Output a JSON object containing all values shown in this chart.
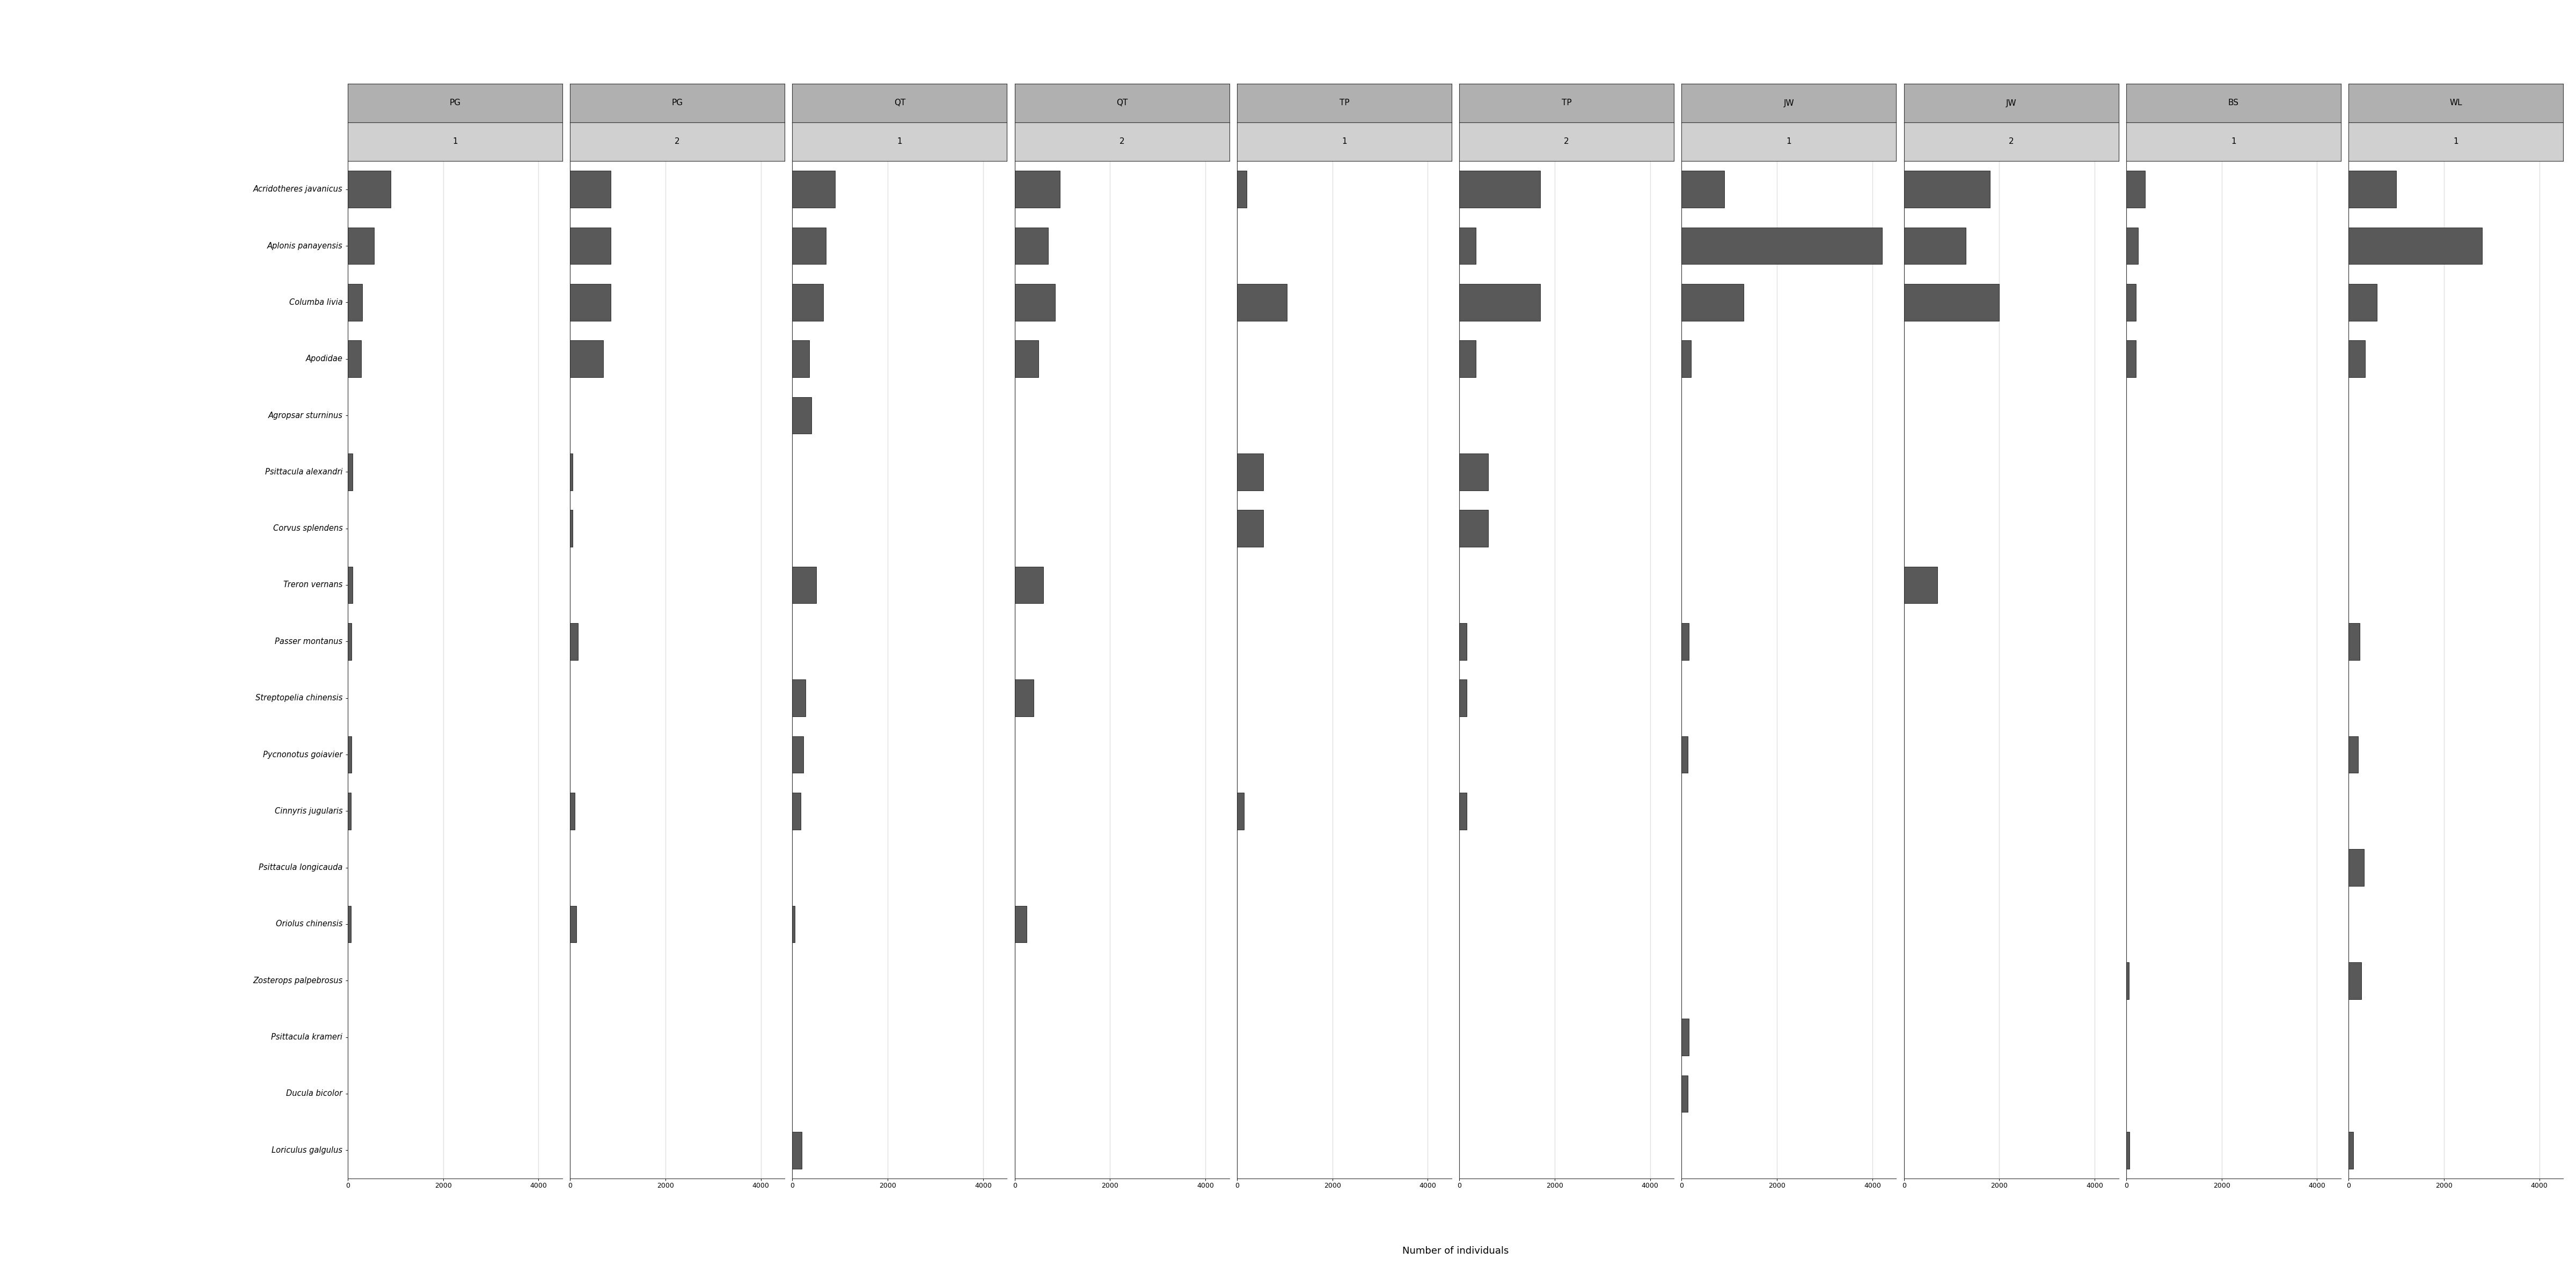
{
  "species": [
    "Acridotheres javanicus",
    "Aplonis panayensis",
    "Columba livia",
    "Apodidae",
    "Agropsar sturninus",
    "Psittacula alexandri",
    "Corvus splendens",
    "Treron vernans",
    "Passer montanus",
    "Streptopelia chinensis",
    "Pycnonotus goiavier",
    "Cinnyris jugularis",
    "Psittacula longicauda",
    "Oriolus chinensis",
    "Zosterops palpebrosus",
    "Psittacula krameri",
    "Ducula bicolor",
    "Loriculus galgulus"
  ],
  "panels": [
    {
      "area": "PG",
      "round": "1"
    },
    {
      "area": "PG",
      "round": "2"
    },
    {
      "area": "QT",
      "round": "1"
    },
    {
      "area": "QT",
      "round": "2"
    },
    {
      "area": "TP",
      "round": "1"
    },
    {
      "area": "TP",
      "round": "2"
    },
    {
      "area": "JW",
      "round": "1"
    },
    {
      "area": "JW",
      "round": "2"
    },
    {
      "area": "BS",
      "round": "1"
    },
    {
      "area": "WL",
      "round": "1"
    }
  ],
  "values": [
    [
      900,
      550,
      300,
      280,
      0,
      100,
      0,
      100,
      80,
      0,
      80,
      70,
      0,
      70,
      0,
      0,
      0,
      0
    ],
    [
      850,
      850,
      850,
      700,
      0,
      50,
      50,
      0,
      170,
      0,
      0,
      100,
      0,
      130,
      0,
      0,
      0,
      0
    ],
    [
      900,
      700,
      650,
      350,
      400,
      0,
      0,
      500,
      0,
      280,
      230,
      180,
      0,
      50,
      0,
      0,
      0,
      200
    ],
    [
      950,
      700,
      850,
      500,
      0,
      0,
      0,
      600,
      0,
      400,
      0,
      0,
      0,
      250,
      0,
      0,
      0,
      0
    ],
    [
      200,
      0,
      1050,
      0,
      0,
      550,
      550,
      0,
      0,
      0,
      0,
      150,
      0,
      0,
      0,
      0,
      0,
      0
    ],
    [
      1700,
      350,
      1700,
      350,
      0,
      600,
      600,
      0,
      150,
      150,
      0,
      150,
      0,
      0,
      0,
      0,
      0,
      0
    ],
    [
      900,
      4200,
      1300,
      200,
      0,
      0,
      0,
      0,
      150,
      0,
      130,
      0,
      0,
      0,
      0,
      150,
      130,
      0
    ],
    [
      1800,
      1300,
      2000,
      0,
      0,
      0,
      0,
      700,
      0,
      0,
      0,
      0,
      0,
      0,
      0,
      0,
      0,
      0
    ],
    [
      400,
      250,
      200,
      200,
      0,
      0,
      0,
      0,
      0,
      0,
      0,
      0,
      0,
      0,
      60,
      0,
      0,
      70
    ],
    [
      1000,
      2800,
      600,
      350,
      0,
      0,
      0,
      0,
      230,
      0,
      200,
      0,
      330,
      0,
      270,
      0,
      0,
      100
    ]
  ],
  "bar_color": "#595959",
  "bar_edge_color": "#1a1a1a",
  "header_area_bg": "#b0b0b0",
  "header_round_bg": "#d0d0d0",
  "panel_bg": "#f5f5f5",
  "grid_color": "#e0e0e0",
  "xlabel": "Number of individuals",
  "xlim": 4500,
  "tick_vals": [
    0,
    2000,
    4000
  ],
  "tick_labels": [
    "0",
    "2000",
    "4000"
  ]
}
